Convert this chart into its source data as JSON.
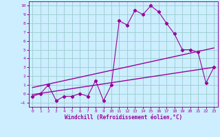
{
  "xlabel": "Windchill (Refroidissement éolien,°C)",
  "bg_color": "#cceeff",
  "grid_color": "#99cccc",
  "line_color": "#990099",
  "xlim": [
    -0.5,
    23.5
  ],
  "ylim": [
    -1.5,
    10.5
  ],
  "yticks": [
    -1,
    0,
    1,
    2,
    3,
    4,
    5,
    6,
    7,
    8,
    9,
    10
  ],
  "xticks": [
    0,
    1,
    2,
    3,
    4,
    5,
    6,
    7,
    8,
    9,
    10,
    11,
    12,
    13,
    14,
    15,
    16,
    17,
    18,
    19,
    20,
    21,
    22,
    23
  ],
  "zigzag_x": [
    0,
    1,
    2,
    3,
    4,
    5,
    6,
    7,
    8,
    9,
    10,
    11,
    12,
    13,
    14,
    15,
    16,
    17,
    18,
    19,
    20,
    21,
    22,
    23
  ],
  "zigzag_y": [
    -0.3,
    0.0,
    1.0,
    -0.8,
    -0.3,
    -0.3,
    0.0,
    -0.3,
    1.5,
    -0.8,
    1.0,
    8.3,
    7.8,
    9.5,
    9.0,
    10.0,
    9.3,
    8.0,
    6.8,
    5.0,
    5.0,
    4.7,
    1.2,
    3.0
  ],
  "line1_x": [
    0,
    23
  ],
  "line1_y": [
    0.7,
    5.2
  ],
  "line2_x": [
    0,
    23
  ],
  "line2_y": [
    -0.1,
    3.0
  ]
}
